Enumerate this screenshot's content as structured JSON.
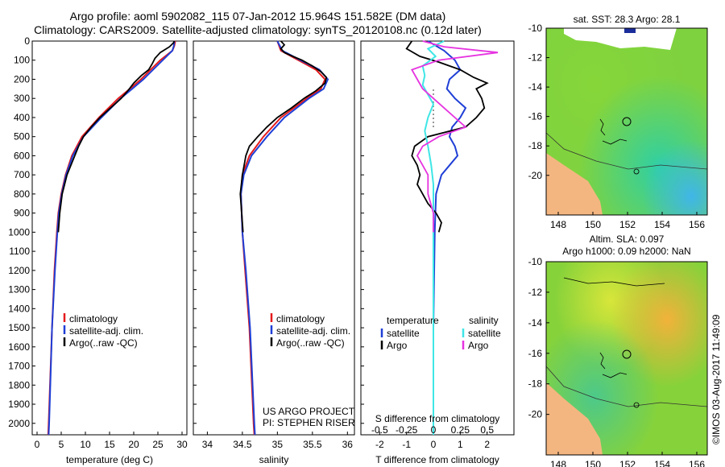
{
  "title": {
    "line1": "Argo profile: aoml 5902082_115 07-Jan-2012 15.964S 151.582E (DM data)",
    "line2": "Climatology: CARS2009. Satellite-adjusted climatology: synTS_20120108.nc (0.12d later)"
  },
  "colors": {
    "climatology": "#e41a1c",
    "satellite": "#1f3fd6",
    "argo": "#000000",
    "sal_satellite": "#3fe6e6",
    "sal_argo": "#e633e0"
  },
  "chart_data": [
    {
      "type": "line",
      "name": "temperature",
      "xlabel": "temperature (deg C)",
      "ylabel": "",
      "xlim": [
        -1,
        31
      ],
      "ylim": [
        2060,
        0
      ],
      "xticks": [
        0,
        5,
        10,
        15,
        20,
        25,
        30
      ],
      "yticks": [
        0,
        100,
        200,
        300,
        400,
        500,
        600,
        700,
        800,
        900,
        1000,
        1100,
        1200,
        1300,
        1400,
        1500,
        1600,
        1700,
        1800,
        1900,
        2000
      ],
      "legend": [
        "climatology",
        "satellite-adj. clim.",
        "Argo(..raw -QC)"
      ],
      "series": [
        {
          "name": "climatology",
          "depth": [
            0,
            25,
            50,
            100,
            150,
            200,
            250,
            300,
            400,
            500,
            600,
            700,
            800,
            900,
            1000,
            1200,
            1500,
            2000,
            2060
          ],
          "values": [
            28.6,
            28.4,
            28,
            25.5,
            23.5,
            21.5,
            19.2,
            16.8,
            12.8,
            9.3,
            7.2,
            5.9,
            5.0,
            4.4,
            4.1,
            3.6,
            3.1,
            2.4,
            2.3
          ]
        },
        {
          "name": "satellite",
          "depth": [
            0,
            25,
            50,
            100,
            150,
            200,
            250,
            300,
            400,
            500,
            600,
            700,
            800,
            900,
            1000,
            1200,
            1500,
            2000,
            2060
          ],
          "values": [
            28.4,
            28.3,
            28,
            26,
            24,
            22,
            19.7,
            17.3,
            13.3,
            9.6,
            7.4,
            6.0,
            5.1,
            4.5,
            4.2,
            3.7,
            3.1,
            2.5,
            2.4
          ]
        },
        {
          "name": "argo",
          "depth": [
            0,
            10,
            30,
            60,
            90,
            120,
            150,
            180,
            220,
            260,
            300,
            350,
            400,
            450,
            500,
            550,
            600,
            650,
            700,
            800,
            900,
            1000
          ],
          "values": [
            28.4,
            28.2,
            27.4,
            25.5,
            24.4,
            23.8,
            23.1,
            21.6,
            20,
            18.8,
            17.4,
            15.2,
            13.0,
            11.2,
            9.6,
            8.6,
            7.8,
            7.0,
            6.2,
            5.2,
            4.7,
            4.4
          ]
        }
      ]
    },
    {
      "type": "line",
      "name": "salinity",
      "xlabel": "salinity",
      "xlim": [
        33.8,
        36.1
      ],
      "ylim": [
        2060,
        0
      ],
      "xticks": [
        34,
        34.5,
        35,
        35.5,
        36
      ],
      "legend": [
        "climatology",
        "satellite-adj. clim.",
        "Argo(..raw -QC)"
      ],
      "annotation": [
        "US ARGO PROJECT",
        "PI: STEPHEN RISER"
      ],
      "series": [
        {
          "name": "climatology",
          "depth": [
            0,
            50,
            100,
            150,
            200,
            250,
            300,
            400,
            500,
            600,
            700,
            800,
            1000,
            1200,
            1500,
            2000,
            2060
          ],
          "values": [
            35.0,
            35.05,
            35.3,
            35.55,
            35.68,
            35.62,
            35.42,
            35.05,
            34.8,
            34.6,
            34.5,
            34.48,
            34.5,
            34.54,
            34.6,
            34.66,
            34.67
          ]
        },
        {
          "name": "satellite",
          "depth": [
            0,
            50,
            100,
            150,
            200,
            250,
            300,
            400,
            500,
            600,
            700,
            800,
            1000,
            1200,
            1500,
            2000,
            2060
          ],
          "values": [
            35.0,
            35.07,
            35.33,
            35.6,
            35.72,
            35.66,
            35.45,
            35.1,
            34.85,
            34.63,
            34.52,
            34.48,
            34.5,
            34.55,
            34.61,
            34.67,
            34.68
          ]
        },
        {
          "name": "argo",
          "depth": [
            0,
            20,
            40,
            60,
            80,
            100,
            130,
            160,
            190,
            220,
            260,
            300,
            350,
            400,
            450,
            500,
            550,
            600,
            700,
            800,
            900,
            1000
          ],
          "values": [
            35.05,
            35.1,
            35.05,
            35.1,
            35.22,
            35.35,
            35.5,
            35.62,
            35.7,
            35.68,
            35.55,
            35.38,
            35.2,
            35.0,
            34.85,
            34.72,
            34.6,
            34.55,
            34.5,
            34.47,
            34.49,
            34.51
          ]
        }
      ]
    },
    {
      "type": "line",
      "name": "difference",
      "xlabel": "T difference from climatology",
      "toplabel": "S difference from climatology",
      "xlim": [
        -2.7,
        3.0
      ],
      "ylim": [
        2060,
        0
      ],
      "xticks": [
        -2,
        -1,
        0,
        1,
        2
      ],
      "xtick_labels": [
        "-2",
        "-1",
        "0",
        "1",
        "2"
      ],
      "s_ticks": [
        -0.5,
        -0.25,
        0,
        0.25,
        0.5
      ],
      "s_tick_labels": [
        "-0.5",
        "-0.25",
        "0",
        "0.25",
        "0.5"
      ],
      "legend_temperature": {
        "header": "temperature",
        "items": [
          "satellite",
          "Argo"
        ]
      },
      "legend_salinity": {
        "header": "salinity",
        "items": [
          "satellite",
          "Argo"
        ]
      },
      "series": [
        {
          "name": "T satellite",
          "depth": [
            0,
            50,
            100,
            150,
            200,
            250,
            300,
            350,
            400,
            450,
            500,
            550,
            600,
            650,
            700,
            800,
            1000,
            1500,
            2000,
            2060
          ],
          "values": [
            -0.2,
            0.4,
            0.8,
            1.0,
            0.6,
            0.5,
            0.8,
            1.2,
            1.0,
            0.7,
            0.6,
            0.8,
            0.9,
            0.6,
            0.3,
            0.1,
            0.05,
            0.0,
            0.0,
            0.0
          ]
        },
        {
          "name": "T argo",
          "depth": [
            0,
            40,
            80,
            110,
            150,
            190,
            220,
            250,
            300,
            350,
            400,
            450,
            500,
            550,
            600,
            650,
            700,
            750,
            800,
            850,
            900,
            950,
            1000
          ],
          "values": [
            -0.8,
            -1.0,
            -0.5,
            0.2,
            1.0,
            1.5,
            2.0,
            1.6,
            1.8,
            1.9,
            1.6,
            1.2,
            -0.2,
            -0.7,
            -0.8,
            -0.6,
            -0.5,
            -0.6,
            -0.4,
            -0.2,
            0.1,
            0.3,
            0.2
          ]
        },
        {
          "name": "S satellite",
          "depth": [
            0,
            40,
            80,
            130,
            180,
            230,
            280,
            330,
            400,
            470,
            550,
            650,
            750,
            850,
            1000,
            1500,
            2000,
            2060
          ],
          "values": [
            0.1,
            -0.05,
            0.02,
            -0.1,
            -0.08,
            -0.1,
            -0.05,
            0.0,
            -0.05,
            -0.08,
            -0.05,
            -0.02,
            0.0,
            0.0,
            0.0,
            0.0,
            0.0,
            0.0
          ]
        },
        {
          "name": "S argo",
          "depth": [
            0,
            30,
            60,
            100,
            150,
            200,
            250,
            300,
            350,
            400,
            450,
            500,
            550,
            600,
            650,
            700,
            800,
            900,
            1000
          ],
          "values": [
            -0.1,
            0.1,
            0.6,
            0.05,
            -0.2,
            -0.15,
            -0.1,
            0.0,
            0.1,
            0.2,
            0.3,
            0.05,
            -0.1,
            -0.15,
            -0.1,
            -0.05,
            -0.05,
            0.0,
            0.0
          ]
        }
      ]
    }
  ],
  "sst_map": {
    "title": "sat. SST: 28.3  Argo: 28.1",
    "xticks": [
      "148",
      "150",
      "152",
      "154",
      "156"
    ],
    "yticks": [
      "-10",
      "-12",
      "-14",
      "-16",
      "-18",
      "-20"
    ]
  },
  "sla_map": {
    "title1": "Altim. SLA: 0.097",
    "title2": "Argo h1000: 0.09 h2000: NaN",
    "xticks": [
      "148",
      "150",
      "152",
      "154",
      "156"
    ],
    "yticks": [
      "-10",
      "-12",
      "-14",
      "-16",
      "-18",
      "-20"
    ]
  },
  "credit": "©IMOS 03-Aug-2017 11:49:09"
}
